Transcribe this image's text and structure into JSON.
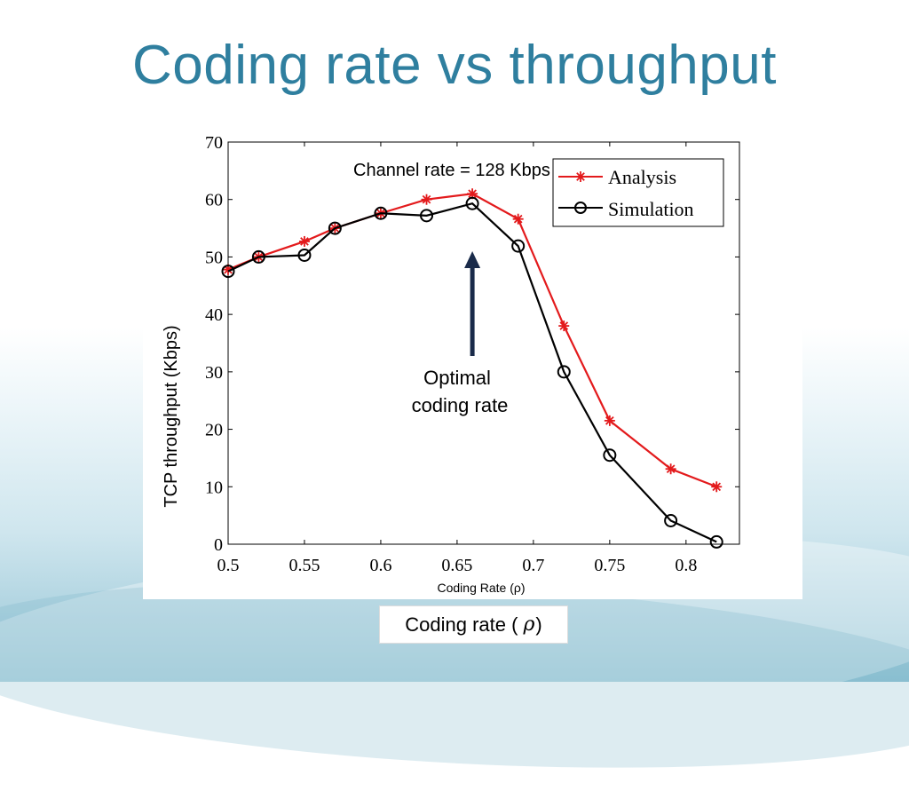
{
  "slide": {
    "title": "Coding rate vs throughput",
    "caption_prefix": "Coding rate (",
    "caption_symbol": "ρ",
    "caption_suffix": ")"
  },
  "colors": {
    "title": "#2f7f9f",
    "analysis": "#e31a1c",
    "simulation": "#000000",
    "arrow": "#1a2b4a"
  },
  "chart_data": {
    "type": "line",
    "title": "",
    "xlabel": "Coding Rate (ρ)",
    "ylabel": "TCP throughput (Kbps)",
    "xlim": [
      0.5,
      0.835
    ],
    "ylim": [
      0,
      70
    ],
    "x_ticks": [
      "0.5",
      "0.55",
      "0.6",
      "0.65",
      "0.7",
      "0.75",
      "0.8"
    ],
    "y_ticks": [
      "0",
      "10",
      "20",
      "30",
      "40",
      "50",
      "60",
      "70"
    ],
    "grid": false,
    "legend_position": "top-right",
    "series": [
      {
        "name": "Analysis",
        "marker": "star",
        "x": [
          0.5,
          0.52,
          0.55,
          0.57,
          0.6,
          0.63,
          0.66,
          0.69,
          0.72,
          0.75,
          0.79,
          0.82
        ],
        "y": [
          47.8,
          50.0,
          52.7,
          55.0,
          57.6,
          60.0,
          61.0,
          56.6,
          38.0,
          21.5,
          13.1,
          10.0
        ]
      },
      {
        "name": "Simulation",
        "marker": "circle",
        "x": [
          0.5,
          0.52,
          0.55,
          0.57,
          0.6,
          0.63,
          0.66,
          0.69,
          0.72,
          0.75,
          0.79,
          0.82
        ],
        "y": [
          47.5,
          50.0,
          50.3,
          55.0,
          57.6,
          57.2,
          59.3,
          51.9,
          30.0,
          15.5,
          4.1,
          0.4
        ]
      }
    ],
    "annotations": {
      "channel_rate": "Channel rate = 128 Kbps",
      "optimal_line1": "Optimal",
      "optimal_line2": "coding rate",
      "optimal_x": 0.66
    }
  }
}
